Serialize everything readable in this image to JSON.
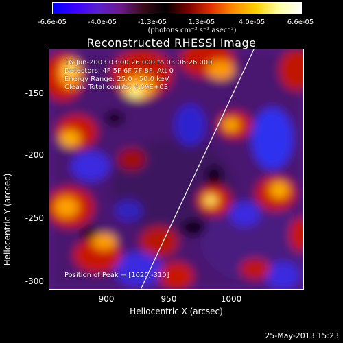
{
  "colorbar": {
    "ticks": [
      "-6.6e-05",
      "-4.0e-05",
      "-1.3e-05",
      "1.3e-05",
      "4.0e-05",
      "6.6e-05"
    ],
    "units": "(photons cm⁻² s⁻¹ asec⁻²)",
    "colors": [
      "#0000ff",
      "#3a00ff",
      "#5a1fcf",
      "#6a1a8a",
      "#3a0a18",
      "#000000",
      "#7a0000",
      "#e03000",
      "#ff8c00",
      "#ffd000",
      "#ffffa0",
      "#ffffff"
    ]
  },
  "title": "Reconstructed RHESSI Image",
  "annotations": {
    "time_range": "16-Jun-2003 03:00:26.000 to 03:06:26.000",
    "detectors": "Detectors: 4F 5F 6F 7F 8F, Att 0",
    "energy": "Energy Range: 25.0 - 50.0 keV",
    "clean": "Clean. Total counts: 4.09E+03",
    "peak": "Position of Peak = [1025,-310]"
  },
  "axes": {
    "ylabel": "Heliocentric Y (arcsec)",
    "xlabel": "Heliocentric X (arcsec)",
    "yticks": [
      "-150",
      "-200",
      "-250",
      "-300"
    ],
    "xticks": [
      "900",
      "950",
      "1000"
    ]
  },
  "timestamp": "25-May-2013 15:23"
}
